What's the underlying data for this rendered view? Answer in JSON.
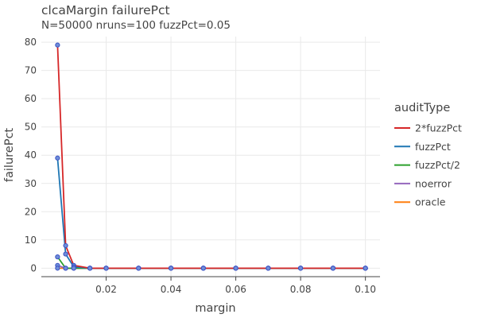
{
  "chart_data": {
    "type": "line",
    "title": "clcaMargin failurePct",
    "subtitle": "N=50000 nruns=100 fuzzPct=0.05",
    "xlabel": "margin",
    "ylabel": "failurePct",
    "xlim": [
      0.0,
      0.1045
    ],
    "ylim": [
      -3,
      82
    ],
    "xticks": [
      0.02,
      0.04,
      0.06,
      0.08,
      0.1
    ],
    "xtick_labels": [
      "0.02",
      "0.04",
      "0.06",
      "0.08",
      "0.10"
    ],
    "yticks": [
      0,
      10,
      20,
      30,
      40,
      50,
      60,
      70,
      80
    ],
    "yticks_labels": [
      "0",
      "10",
      "20",
      "30",
      "40",
      "50",
      "60",
      "70",
      "80"
    ],
    "grid": true,
    "legend": {
      "title": "auditType",
      "placement": "right"
    },
    "x": [
      0.005,
      0.0075,
      0.01,
      0.015,
      0.02,
      0.03,
      0.04,
      0.05,
      0.06,
      0.07,
      0.08,
      0.09,
      0.1
    ],
    "series": [
      {
        "name": "2*fuzzPct",
        "color": "#d62728",
        "values": [
          79,
          8,
          1,
          0,
          0,
          0,
          0,
          0,
          0,
          0,
          0,
          0,
          0
        ]
      },
      {
        "name": "fuzzPct",
        "color": "#1f77b4",
        "values": [
          39,
          5,
          0.5,
          0,
          0,
          0,
          0,
          0,
          0,
          0,
          0,
          0,
          0
        ]
      },
      {
        "name": "fuzzPct/2",
        "color": "#2ca02c",
        "values": [
          4,
          0,
          0,
          0,
          0,
          0,
          0,
          0,
          0,
          0,
          0,
          0,
          0
        ]
      },
      {
        "name": "noerror",
        "color": "#9467bd",
        "values": [
          1,
          0,
          0,
          0,
          0,
          0,
          0,
          0,
          0,
          0,
          0,
          0,
          0
        ]
      },
      {
        "name": "oracle",
        "color": "#ff7f0e",
        "values": [
          0,
          0,
          0,
          0,
          0,
          0,
          0,
          0,
          0,
          0,
          0,
          0,
          0
        ]
      }
    ],
    "marker_fill": "#6f8fd8",
    "marker_stroke": "#3b52c4"
  }
}
